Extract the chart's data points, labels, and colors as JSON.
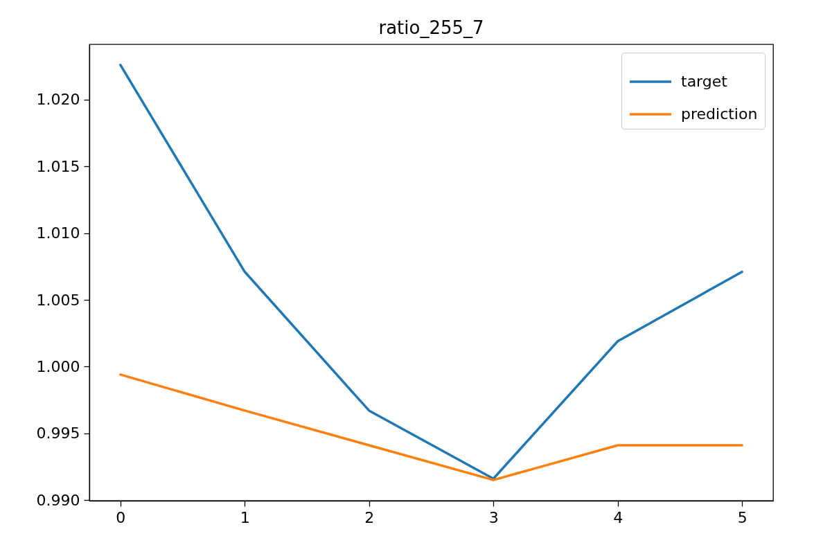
{
  "chart_data": {
    "type": "line",
    "title": "ratio_255_7",
    "x": [
      0,
      1,
      2,
      3,
      4,
      5
    ],
    "series": [
      {
        "name": "target",
        "color": "#1f77b4",
        "values": [
          1.0226,
          1.0071,
          0.9967,
          0.9916,
          1.0019,
          1.0071
        ]
      },
      {
        "name": "prediction",
        "color": "#ff7f0e",
        "values": [
          0.9994,
          0.9967,
          0.9941,
          0.9915,
          0.9941,
          0.9941
        ]
      }
    ],
    "xlim": [
      -0.25,
      5.25
    ],
    "xticks": [
      0,
      1,
      2,
      3,
      4,
      5
    ],
    "ylim": [
      0.98995,
      1.02415
    ],
    "yticks": [
      {
        "value": 0.99,
        "label": "0.990"
      },
      {
        "value": 0.995,
        "label": "0.995"
      },
      {
        "value": 1.0,
        "label": "1.000"
      },
      {
        "value": 1.005,
        "label": "1.005"
      },
      {
        "value": 1.01,
        "label": "1.010"
      },
      {
        "value": 1.015,
        "label": "1.015"
      },
      {
        "value": 1.02,
        "label": "1.020"
      }
    ],
    "legend": "top right",
    "line_style": "solid"
  }
}
